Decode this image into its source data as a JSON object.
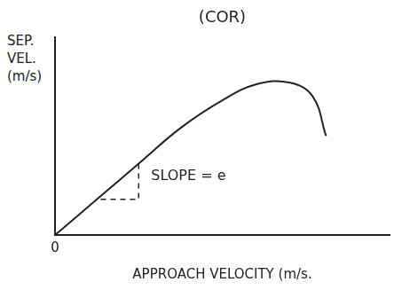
{
  "chart_data": {
    "type": "line",
    "title": "(COR)",
    "x_label": "APPROACH VELOCITY (m/s.",
    "y_label": "SEP. VEL. (m/s)",
    "annotations": [
      "SLOPE = e"
    ],
    "x": [
      0,
      1.25,
      2.5,
      3.75,
      5,
      6,
      7,
      7.7,
      8.1
    ],
    "values": [
      0,
      1.8,
      3.6,
      5.4,
      6.8,
      7.6,
      7.7,
      7.0,
      5.0
    ],
    "color": "#222222",
    "xlim": [
      0,
      10
    ],
    "ylim": [
      0,
      10
    ],
    "xticks": [
      0
    ],
    "yticks": [],
    "grid": false,
    "tick_labels": "x"
  }
}
